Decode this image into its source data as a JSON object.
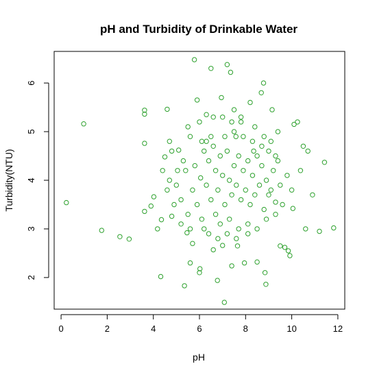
{
  "chart_data": {
    "type": "scatter",
    "title": "pH and Turbidity of Drinkable Water",
    "xlabel": "pH",
    "ylabel": "Turbidity(NTU)",
    "xlim": [
      -0.3,
      12.3
    ],
    "ylim": [
      1.35,
      6.65
    ],
    "x_ticks": [
      0,
      2,
      4,
      6,
      8,
      10,
      12
    ],
    "y_ticks": [
      2,
      3,
      4,
      5,
      6
    ],
    "grid": false,
    "marker_color": "#2ca02c",
    "marker": "open-circle",
    "series": [
      {
        "points": [
          [
            0.23,
            3.54
          ],
          [
            0.98,
            5.16
          ],
          [
            1.76,
            2.97
          ],
          [
            2.55,
            2.84
          ],
          [
            2.95,
            2.79
          ],
          [
            3.62,
            5.44
          ],
          [
            3.62,
            5.36
          ],
          [
            3.62,
            4.76
          ],
          [
            3.62,
            3.36
          ],
          [
            3.9,
            3.47
          ],
          [
            4.02,
            3.66
          ],
          [
            4.18,
            3.0
          ],
          [
            4.32,
            2.02
          ],
          [
            4.35,
            3.19
          ],
          [
            4.5,
            4.48
          ],
          [
            4.6,
            5.46
          ],
          [
            4.7,
            4.8
          ],
          [
            4.8,
            3.26
          ],
          [
            5.05,
            4.2
          ],
          [
            5.2,
            3.1
          ],
          [
            5.35,
            1.83
          ],
          [
            5.46,
            2.92
          ],
          [
            5.6,
            2.3
          ],
          [
            5.7,
            2.7
          ],
          [
            5.78,
            6.48
          ],
          [
            5.9,
            5.65
          ],
          [
            6.0,
            2.1
          ],
          [
            6.02,
            2.18
          ],
          [
            6.1,
            4.8
          ],
          [
            6.3,
            5.35
          ],
          [
            6.5,
            6.3
          ],
          [
            6.6,
            2.57
          ],
          [
            6.78,
            1.94
          ],
          [
            6.95,
            5.7
          ],
          [
            7.0,
            2.66
          ],
          [
            7.08,
            1.49
          ],
          [
            7.2,
            6.38
          ],
          [
            7.35,
            6.22
          ],
          [
            7.4,
            2.24
          ],
          [
            7.5,
            5.45
          ],
          [
            7.58,
            4.9
          ],
          [
            7.65,
            2.65
          ],
          [
            7.8,
            5.2
          ],
          [
            7.95,
            2.3
          ],
          [
            8.1,
            2.9
          ],
          [
            8.2,
            5.6
          ],
          [
            8.35,
            4.6
          ],
          [
            8.5,
            2.32
          ],
          [
            8.68,
            5.8
          ],
          [
            8.78,
            6.0
          ],
          [
            8.84,
            2.1
          ],
          [
            8.88,
            1.86
          ],
          [
            9.0,
            3.7
          ],
          [
            9.15,
            5.45
          ],
          [
            9.3,
            3.55
          ],
          [
            9.5,
            2.65
          ],
          [
            9.7,
            2.62
          ],
          [
            9.85,
            2.55
          ],
          [
            9.92,
            2.45
          ],
          [
            10.05,
            3.42
          ],
          [
            10.1,
            5.15
          ],
          [
            10.25,
            5.2
          ],
          [
            10.38,
            4.2
          ],
          [
            10.5,
            4.7
          ],
          [
            10.6,
            3.0
          ],
          [
            10.7,
            4.6
          ],
          [
            10.9,
            3.7
          ],
          [
            11.2,
            2.95
          ],
          [
            11.42,
            4.37
          ],
          [
            11.82,
            3.02
          ],
          [
            5.1,
            4.62
          ],
          [
            5.4,
            4.2
          ],
          [
            5.6,
            4.9
          ],
          [
            5.8,
            4.3
          ],
          [
            5.9,
            3.5
          ],
          [
            6.05,
            4.05
          ],
          [
            6.2,
            4.6
          ],
          [
            6.3,
            3.9
          ],
          [
            6.4,
            4.4
          ],
          [
            6.5,
            3.6
          ],
          [
            6.6,
            4.7
          ],
          [
            6.7,
            4.2
          ],
          [
            6.8,
            3.8
          ],
          [
            6.9,
            4.5
          ],
          [
            7.0,
            4.1
          ],
          [
            7.1,
            3.5
          ],
          [
            7.2,
            4.6
          ],
          [
            7.3,
            4.0
          ],
          [
            7.4,
            3.7
          ],
          [
            7.5,
            4.3
          ],
          [
            7.6,
            3.9
          ],
          [
            7.7,
            4.5
          ],
          [
            7.8,
            3.6
          ],
          [
            7.9,
            4.2
          ],
          [
            8.0,
            3.8
          ],
          [
            8.1,
            4.4
          ],
          [
            8.2,
            3.5
          ],
          [
            8.3,
            4.1
          ],
          [
            8.4,
            3.7
          ],
          [
            8.5,
            4.5
          ],
          [
            8.6,
            3.9
          ],
          [
            8.7,
            4.3
          ],
          [
            8.8,
            3.4
          ],
          [
            8.9,
            4.0
          ],
          [
            9.0,
            4.6
          ],
          [
            9.1,
            3.8
          ],
          [
            9.2,
            4.2
          ],
          [
            9.3,
            3.3
          ],
          [
            9.4,
            4.4
          ],
          [
            9.5,
            3.9
          ],
          [
            5.0,
            3.9
          ],
          [
            5.2,
            3.6
          ],
          [
            5.3,
            4.4
          ],
          [
            5.5,
            3.3
          ],
          [
            5.7,
            3.8
          ],
          [
            6.1,
            3.2
          ],
          [
            6.3,
            4.8
          ],
          [
            6.5,
            4.9
          ],
          [
            6.7,
            3.3
          ],
          [
            6.9,
            3.1
          ],
          [
            7.1,
            4.9
          ],
          [
            7.3,
            3.2
          ],
          [
            7.5,
            5.0
          ],
          [
            7.7,
            3.0
          ],
          [
            7.9,
            4.9
          ],
          [
            8.1,
            3.1
          ],
          [
            8.3,
            4.8
          ],
          [
            8.5,
            3.0
          ],
          [
            8.7,
            4.7
          ],
          [
            8.9,
            3.2
          ],
          [
            9.1,
            4.8
          ],
          [
            9.3,
            4.5
          ],
          [
            9.6,
            3.5
          ],
          [
            9.8,
            4.1
          ],
          [
            10.0,
            3.8
          ],
          [
            4.7,
            4.0
          ],
          [
            4.9,
            3.5
          ],
          [
            4.8,
            4.6
          ],
          [
            4.6,
            3.8
          ],
          [
            4.4,
            4.2
          ],
          [
            6.2,
            3.0
          ],
          [
            6.4,
            2.9
          ],
          [
            6.8,
            2.8
          ],
          [
            7.2,
            2.9
          ],
          [
            7.6,
            2.8
          ],
          [
            6.0,
            5.2
          ],
          [
            6.6,
            5.3
          ],
          [
            7.0,
            5.3
          ],
          [
            7.4,
            5.2
          ],
          [
            7.8,
            5.3
          ],
          [
            5.5,
            5.1
          ],
          [
            8.4,
            5.1
          ],
          [
            8.8,
            4.9
          ],
          [
            9.4,
            5.0
          ],
          [
            5.6,
            3.0
          ]
        ]
      }
    ]
  }
}
